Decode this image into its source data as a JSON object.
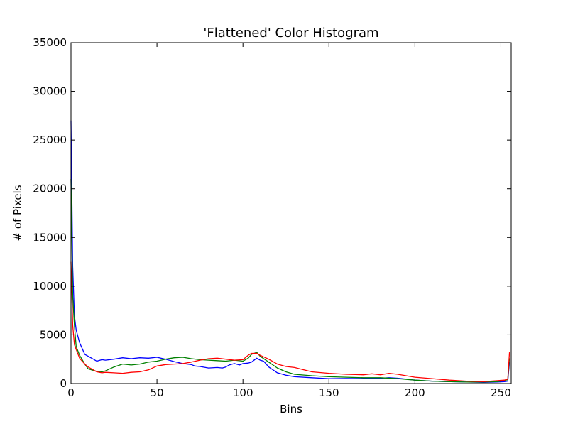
{
  "chart_data": {
    "type": "line",
    "title": "'Flattened' Color Histogram",
    "xlabel": "Bins",
    "ylabel": "# of Pixels",
    "xlim": [
      0,
      256
    ],
    "ylim": [
      0,
      35000
    ],
    "xticks": [
      0,
      50,
      100,
      150,
      200,
      250
    ],
    "yticks": [
      0,
      5000,
      10000,
      15000,
      20000,
      25000,
      30000,
      35000
    ],
    "grid": false,
    "legend": "none",
    "series": [
      {
        "color": "#0000ff",
        "x": [
          0,
          1,
          2,
          3,
          5,
          8,
          10,
          13,
          15,
          18,
          20,
          25,
          30,
          35,
          40,
          45,
          50,
          55,
          60,
          65,
          70,
          72,
          75,
          80,
          85,
          88,
          90,
          92,
          95,
          98,
          100,
          103,
          105,
          108,
          110,
          112,
          115,
          120,
          125,
          130,
          140,
          150,
          160,
          170,
          180,
          185,
          190,
          200,
          210,
          220,
          230,
          240,
          248,
          252,
          254,
          255
        ],
        "values": [
          27000,
          12000,
          7000,
          5500,
          4200,
          3000,
          2800,
          2500,
          2300,
          2450,
          2400,
          2500,
          2650,
          2550,
          2650,
          2600,
          2700,
          2500,
          2250,
          2050,
          1950,
          1800,
          1750,
          1600,
          1650,
          1600,
          1700,
          1900,
          2050,
          1900,
          2050,
          2100,
          2200,
          2600,
          2400,
          2300,
          1700,
          1100,
          850,
          700,
          600,
          500,
          520,
          500,
          550,
          600,
          550,
          350,
          250,
          200,
          150,
          120,
          150,
          200,
          250,
          2200
        ]
      },
      {
        "color": "#008000",
        "x": [
          0,
          1,
          2,
          3,
          5,
          8,
          10,
          13,
          15,
          18,
          20,
          25,
          30,
          35,
          40,
          45,
          50,
          55,
          60,
          65,
          70,
          75,
          80,
          85,
          90,
          95,
          100,
          103,
          105,
          108,
          110,
          115,
          120,
          125,
          130,
          140,
          150,
          160,
          170,
          180,
          190,
          200,
          210,
          220,
          230,
          240,
          248,
          252,
          254,
          255
        ],
        "values": [
          21000,
          9000,
          6000,
          3800,
          2900,
          2000,
          1500,
          1350,
          1250,
          1200,
          1300,
          1700,
          2000,
          1900,
          2000,
          2200,
          2300,
          2500,
          2650,
          2700,
          2550,
          2450,
          2400,
          2350,
          2300,
          2400,
          2300,
          2600,
          3000,
          3200,
          2800,
          2200,
          1600,
          1200,
          950,
          800,
          700,
          650,
          600,
          600,
          500,
          350,
          250,
          200,
          150,
          150,
          200,
          300,
          400,
          2600
        ]
      },
      {
        "color": "#ff0000",
        "x": [
          0,
          1,
          2,
          3,
          5,
          8,
          10,
          13,
          15,
          18,
          20,
          25,
          30,
          35,
          40,
          45,
          50,
          55,
          60,
          65,
          70,
          75,
          80,
          85,
          90,
          95,
          100,
          103,
          105,
          108,
          110,
          115,
          120,
          125,
          130,
          140,
          150,
          160,
          170,
          175,
          180,
          185,
          190,
          200,
          210,
          220,
          230,
          240,
          248,
          252,
          254,
          255
        ],
        "values": [
          12500,
          6000,
          4000,
          3500,
          2600,
          2000,
          1700,
          1400,
          1200,
          1100,
          1150,
          1100,
          1050,
          1150,
          1200,
          1400,
          1800,
          1950,
          2000,
          2050,
          2200,
          2400,
          2550,
          2600,
          2500,
          2400,
          2450,
          2900,
          3100,
          3100,
          2900,
          2500,
          2000,
          1750,
          1650,
          1200,
          1050,
          950,
          900,
          1000,
          900,
          1050,
          950,
          650,
          500,
          350,
          250,
          200,
          300,
          350,
          450,
          3200
        ]
      }
    ]
  }
}
